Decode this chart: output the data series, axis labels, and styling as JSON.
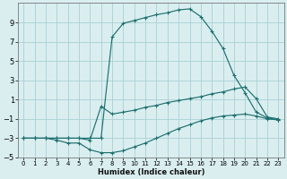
{
  "xlabel": "Humidex (Indice chaleur)",
  "bg_color": "#daeef0",
  "grid_color": "#afd4d8",
  "line_color": "#1e7070",
  "xlim": [
    -0.5,
    23.5
  ],
  "ylim": [
    -5,
    11
  ],
  "xticks": [
    0,
    1,
    2,
    3,
    4,
    5,
    6,
    7,
    8,
    9,
    10,
    11,
    12,
    13,
    14,
    15,
    16,
    17,
    18,
    19,
    20,
    21,
    22,
    23
  ],
  "yticks": [
    -5,
    -3,
    -1,
    1,
    3,
    5,
    7,
    9
  ],
  "series": [
    {
      "x": [
        0,
        1,
        2,
        3,
        4,
        5,
        6,
        7,
        8,
        9,
        10,
        11,
        12,
        13,
        14,
        15,
        16,
        17,
        18,
        19,
        20,
        21,
        22,
        23
      ],
      "y": [
        -3,
        -3,
        -3,
        -3.2,
        -3.5,
        -3.5,
        -4.2,
        -4.5,
        -4.5,
        -4.3,
        -3.9,
        -3.5,
        -3.0,
        -2.5,
        -2.0,
        -1.6,
        -1.2,
        -0.9,
        -0.7,
        -0.6,
        -0.5,
        -0.7,
        -1.0,
        -1.1
      ]
    },
    {
      "x": [
        0,
        1,
        2,
        3,
        4,
        5,
        6,
        7,
        8,
        9,
        10,
        11,
        12,
        13,
        14,
        15,
        16,
        17,
        18,
        19,
        20,
        21,
        22,
        23
      ],
      "y": [
        -3,
        -3,
        -3,
        -3,
        -3,
        -3,
        -3.2,
        0.3,
        -0.5,
        -0.3,
        -0.1,
        0.2,
        0.4,
        0.7,
        0.9,
        1.1,
        1.3,
        1.6,
        1.8,
        2.1,
        2.3,
        1.1,
        -0.8,
        -1.0
      ]
    },
    {
      "x": [
        0,
        1,
        2,
        3,
        4,
        5,
        6,
        7,
        8,
        9,
        10,
        11,
        12,
        13,
        14,
        15,
        16,
        17,
        18,
        19,
        20,
        21,
        22,
        23
      ],
      "y": [
        -3,
        -3,
        -3,
        -3,
        -3,
        -3,
        -3,
        -3,
        7.5,
        8.9,
        9.2,
        9.5,
        9.8,
        10.0,
        10.3,
        10.4,
        9.6,
        8.1,
        6.3,
        3.5,
        1.7,
        -0.3,
        -0.9,
        -1.1
      ]
    }
  ]
}
